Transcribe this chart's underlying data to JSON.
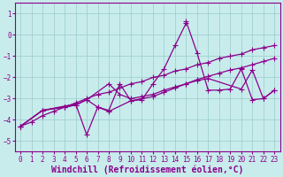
{
  "xlabel": "Windchill (Refroidissement éolien,°C)",
  "ylabel": "",
  "background_color": "#c8ecec",
  "grid_color": "#a0d0d0",
  "line_color": "#8b008b",
  "ylim": [
    -5.5,
    1.5
  ],
  "xlim": [
    -0.5,
    23.5
  ],
  "yticks": [
    -5,
    -4,
    -3,
    -2,
    -1,
    0,
    1
  ],
  "xticks": [
    0,
    1,
    2,
    3,
    4,
    5,
    6,
    7,
    8,
    9,
    10,
    11,
    12,
    13,
    14,
    15,
    16,
    17,
    18,
    19,
    20,
    21,
    22,
    23
  ],
  "lines": [
    {
      "x": [
        0,
        1,
        2,
        3,
        4,
        5,
        6,
        7,
        8,
        9,
        10,
        11,
        12,
        13,
        14,
        15,
        16,
        17,
        18,
        19,
        20,
        21,
        22,
        23
      ],
      "y": [
        -4.3,
        -4.1,
        -3.8,
        -3.6,
        -3.4,
        -3.2,
        -3.0,
        -2.8,
        -2.7,
        -2.5,
        -2.3,
        -2.2,
        -2.0,
        -1.9,
        -1.7,
        -1.6,
        -1.4,
        -1.3,
        -1.1,
        -1.0,
        -0.9,
        -0.7,
        -0.6,
        -0.5
      ]
    },
    {
      "x": [
        0,
        2,
        5,
        6,
        7,
        8,
        9,
        10,
        11,
        12,
        13,
        14,
        15,
        15,
        16,
        17,
        18,
        19,
        20,
        21,
        22,
        23
      ],
      "y": [
        -4.3,
        -3.55,
        -3.25,
        -4.7,
        -3.4,
        -3.55,
        -2.3,
        -3.1,
        -3.05,
        -2.3,
        -1.6,
        -0.5,
        0.55,
        0.65,
        -0.85,
        -2.6,
        -2.6,
        -2.55,
        -1.6,
        -3.05,
        -3.0,
        -2.6
      ]
    },
    {
      "x": [
        0,
        2,
        4,
        5,
        6,
        7,
        8,
        10,
        11,
        12,
        13,
        14,
        15,
        16,
        17,
        18,
        19,
        20,
        21,
        22,
        23
      ],
      "y": [
        -4.3,
        -3.55,
        -3.4,
        -3.3,
        -3.05,
        -3.4,
        -3.6,
        -3.1,
        -3.0,
        -2.9,
        -2.7,
        -2.5,
        -2.3,
        -2.1,
        -1.95,
        -1.8,
        -1.65,
        -1.55,
        -1.4,
        -1.25,
        -1.1
      ]
    },
    {
      "x": [
        0,
        2,
        4,
        5,
        6,
        8,
        9,
        10,
        11,
        12,
        13,
        14,
        15,
        16,
        17,
        20,
        21,
        22,
        23
      ],
      "y": [
        -4.3,
        -3.55,
        -3.4,
        -3.3,
        -3.05,
        -2.3,
        -2.8,
        -3.0,
        -2.9,
        -2.8,
        -2.6,
        -2.45,
        -2.3,
        -2.15,
        -2.05,
        -2.55,
        -1.65,
        -3.0,
        -2.6
      ]
    }
  ],
  "marker": "+",
  "markersize": 4,
  "linewidth": 0.9,
  "tick_fontsize": 5.5,
  "label_fontsize": 7.0,
  "figsize": [
    3.2,
    2.0
  ],
  "dpi": 100
}
